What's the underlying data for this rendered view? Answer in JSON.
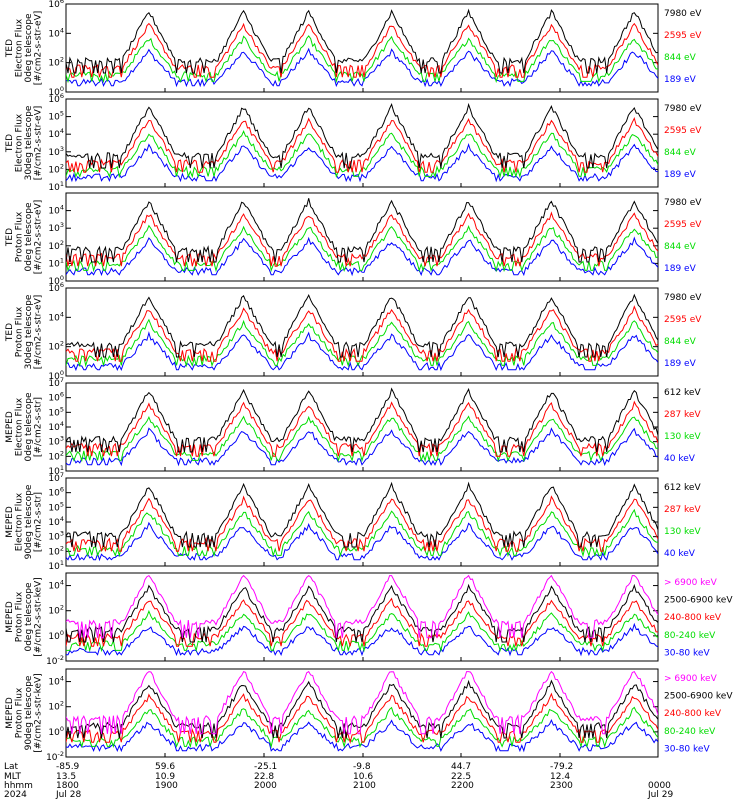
{
  "chart_data": [
    {
      "type": "line",
      "ylabel": [
        "TED",
        "Electron Flux",
        "0deg telescope",
        "[#/cm2-s-str-eV]"
      ],
      "ylim": [
        1,
        1000000
      ],
      "y_ticks": [
        "10^0",
        "10^2",
        "10^4",
        "10^6"
      ],
      "log_scale": true,
      "grid": false,
      "legend_position": "right",
      "series": [
        {
          "name": "7980 eV",
          "color": "#000000"
        },
        {
          "name": "2595 eV",
          "color": "#ff0000"
        },
        {
          "name": "844 eV",
          "color": "#00dd00"
        },
        {
          "name": "189 eV",
          "color": "#0000ff"
        }
      ]
    },
    {
      "type": "line",
      "ylabel": [
        "TED",
        "Electron Flux",
        "30deg telescope",
        "[#/cm2-s-str-eV]"
      ],
      "ylim": [
        10,
        1000000
      ],
      "y_ticks": [
        "10^1",
        "10^2",
        "10^3",
        "10^4",
        "10^5",
        "10^6"
      ],
      "log_scale": true,
      "grid": false,
      "legend_position": "right",
      "series": [
        {
          "name": "7980 eV",
          "color": "#000000"
        },
        {
          "name": "2595 eV",
          "color": "#ff0000"
        },
        {
          "name": "844 eV",
          "color": "#00dd00"
        },
        {
          "name": "189 eV",
          "color": "#0000ff"
        }
      ]
    },
    {
      "type": "line",
      "ylabel": [
        "TED",
        "Proton Flux",
        "0deg telescope",
        "[#/cm2-s-str-eV]"
      ],
      "ylim": [
        1,
        100000
      ],
      "y_ticks": [
        "10^0",
        "10^1",
        "10^2",
        "10^3",
        "10^4"
      ],
      "log_scale": true,
      "grid": false,
      "legend_position": "right",
      "series": [
        {
          "name": "7980 eV",
          "color": "#000000"
        },
        {
          "name": "2595 eV",
          "color": "#ff0000"
        },
        {
          "name": "844 eV",
          "color": "#00dd00"
        },
        {
          "name": "189 eV",
          "color": "#0000ff"
        }
      ]
    },
    {
      "type": "line",
      "ylabel": [
        "TED",
        "Proton Flux",
        "30deg telescope",
        "[#/cm2-s-str-eV]"
      ],
      "ylim": [
        1,
        1000000
      ],
      "y_ticks": [
        "10^0",
        "10^2",
        "10^4",
        "10^6"
      ],
      "log_scale": true,
      "grid": false,
      "legend_position": "right",
      "series": [
        {
          "name": "7980 eV",
          "color": "#000000"
        },
        {
          "name": "2595 eV",
          "color": "#ff0000"
        },
        {
          "name": "844 eV",
          "color": "#00dd00"
        },
        {
          "name": "189 eV",
          "color": "#0000ff"
        }
      ]
    },
    {
      "type": "line",
      "ylabel": [
        "MEPED",
        "Electron Flux",
        "0deg telescope",
        "[#/cm2-s-str]"
      ],
      "ylim": [
        10,
        10000000
      ],
      "y_ticks": [
        "10^1",
        "10^2",
        "10^3",
        "10^4",
        "10^5",
        "10^6",
        "10^7"
      ],
      "log_scale": true,
      "grid": false,
      "legend_position": "right",
      "series": [
        {
          "name": "612 keV",
          "color": "#000000"
        },
        {
          "name": "287 keV",
          "color": "#ff0000"
        },
        {
          "name": "130 keV",
          "color": "#00dd00"
        },
        {
          "name": "40 keV",
          "color": "#0000ff"
        }
      ]
    },
    {
      "type": "line",
      "ylabel": [
        "MEPED",
        "Electron Flux",
        "90deg telescope",
        "[#/cm2-s-str]"
      ],
      "ylim": [
        10,
        10000000
      ],
      "y_ticks": [
        "10^1",
        "10^2",
        "10^3",
        "10^4",
        "10^5",
        "10^6",
        "10^7"
      ],
      "log_scale": true,
      "grid": false,
      "legend_position": "right",
      "series": [
        {
          "name": "612 keV",
          "color": "#000000"
        },
        {
          "name": "287 keV",
          "color": "#ff0000"
        },
        {
          "name": "130 keV",
          "color": "#00dd00"
        },
        {
          "name": "40 keV",
          "color": "#0000ff"
        }
      ]
    },
    {
      "type": "line",
      "ylabel": [
        "MEPED",
        "Proton Flux",
        "0deg telescope",
        "[#/cm2-s-str-keV]"
      ],
      "ylim": [
        0.01,
        100000
      ],
      "y_ticks": [
        "10^-2",
        "10^0",
        "10^2",
        "10^4"
      ],
      "log_scale": true,
      "grid": false,
      "legend_position": "right",
      "series": [
        {
          "name": "> 6900 keV",
          "color": "#ff00ff"
        },
        {
          "name": "2500-6900 keV",
          "color": "#000000"
        },
        {
          "name": "240-800 keV",
          "color": "#ff0000"
        },
        {
          "name": "80-240 keV",
          "color": "#00dd00"
        },
        {
          "name": "30-80 keV",
          "color": "#0000ff"
        }
      ]
    },
    {
      "type": "line",
      "ylabel": [
        "MEPED",
        "Proton Flux",
        "90deg telescope",
        "[#/cm2-s-str-keV]"
      ],
      "ylim": [
        0.01,
        100000
      ],
      "y_ticks": [
        "10^-2",
        "10^0",
        "10^2",
        "10^4"
      ],
      "log_scale": true,
      "grid": false,
      "legend_position": "right",
      "series": [
        {
          "name": "> 6900 keV",
          "color": "#ff00ff"
        },
        {
          "name": "2500-6900 keV",
          "color": "#000000"
        },
        {
          "name": "240-800 keV",
          "color": "#ff0000"
        },
        {
          "name": "80-240 keV",
          "color": "#00dd00"
        },
        {
          "name": "30-80 keV",
          "color": "#0000ff"
        }
      ]
    }
  ],
  "footer": {
    "row_labels": [
      "Lat",
      "MLT",
      "hhmm",
      "2024"
    ],
    "columns": [
      {
        "lat": "-85.9",
        "mlt": "13.5",
        "hhmm": "1800",
        "date": "Jul 28"
      },
      {
        "lat": "59.6",
        "mlt": "10.9",
        "hhmm": "1900",
        "date": ""
      },
      {
        "lat": "-25.1",
        "mlt": "22.8",
        "hhmm": "2000",
        "date": ""
      },
      {
        "lat": "-9.8",
        "mlt": "10.6",
        "hhmm": "2100",
        "date": ""
      },
      {
        "lat": "44.7",
        "mlt": "22.5",
        "hhmm": "2200",
        "date": ""
      },
      {
        "lat": "-79.2",
        "mlt": "12.4",
        "hhmm": "2300",
        "date": ""
      },
      {
        "lat": "",
        "mlt": "",
        "hhmm": "0000",
        "date": "Jul 29"
      }
    ]
  }
}
